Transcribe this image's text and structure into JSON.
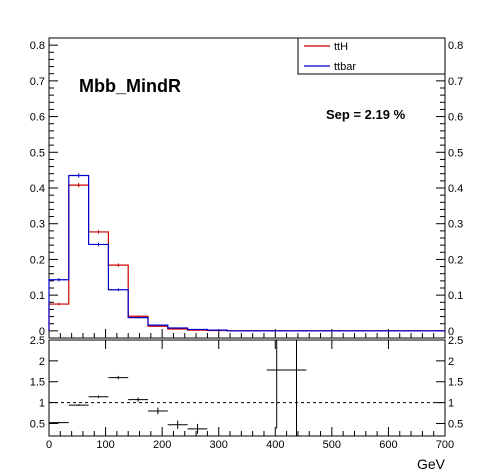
{
  "chart_data": [
    {
      "type": "line",
      "drawstyle": "histogram-steps",
      "title": "Mbb_MindR",
      "annotation": "Sep = 2.19 %",
      "xlim": [
        0,
        700
      ],
      "ylim": [
        -0.02,
        0.82
      ],
      "yticks": [
        0,
        0.1,
        0.2,
        0.3,
        0.4,
        0.5,
        0.6,
        0.7,
        0.8
      ],
      "ytick_labels": [
        "0",
        "0.1",
        "0.2",
        "0.3",
        "0.4",
        "0.5",
        "0.6",
        "0.7",
        "0.8"
      ],
      "ytick_labels_right": [
        "0",
        "0.1",
        "0.2",
        "0.3",
        "0.4",
        "0.5",
        "0.6",
        "0.7",
        "0.8"
      ],
      "legend_position": "top-right",
      "bin_edges": [
        0,
        35,
        70,
        105,
        140,
        175,
        210,
        245,
        280,
        315,
        350,
        385,
        420,
        455,
        490,
        525,
        560,
        595,
        630,
        665,
        700
      ],
      "series": [
        {
          "name": "ttH",
          "color": "#cc0000",
          "values": [
            0.075,
            0.408,
            0.277,
            0.184,
            0.041,
            0.013,
            0.005,
            0.002,
            0.001,
            0,
            0,
            0,
            0,
            0,
            0,
            0,
            0,
            0,
            0,
            0
          ],
          "errors": [
            0.004,
            0.006,
            0.005,
            0.005,
            0.002,
            0.001,
            0.001,
            0.0005,
            0.0005,
            0,
            0,
            0,
            0,
            0,
            0,
            0,
            0,
            0,
            0,
            0
          ]
        },
        {
          "name": "ttbar",
          "color": "#0000cc",
          "values": [
            0.143,
            0.435,
            0.242,
            0.115,
            0.037,
            0.016,
            0.008,
            0.004,
            0.002,
            0,
            0,
            0,
            0,
            0,
            0,
            0,
            0,
            0,
            0,
            0
          ],
          "errors": [
            0.005,
            0.006,
            0.005,
            0.004,
            0.002,
            0.001,
            0.001,
            0.0005,
            0.0005,
            0,
            0,
            0,
            0,
            0,
            0,
            0,
            0,
            0,
            0,
            0
          ]
        }
      ]
    },
    {
      "type": "scatter",
      "description_role": "ratio",
      "xlim": [
        0,
        700
      ],
      "ylim": [
        0.2,
        2.5
      ],
      "xticks": [
        0,
        100,
        200,
        300,
        400,
        500,
        600,
        700
      ],
      "xtick_labels": [
        "0",
        "100",
        "200",
        "300",
        "400",
        "500",
        "600",
        "700"
      ],
      "xlabel": "GeV",
      "yticks": [
        0.5,
        1,
        1.5,
        2,
        2.5
      ],
      "ytick_labels": [
        "0.5",
        "1",
        "1.5",
        "2",
        "2.5"
      ],
      "ytick_labels_right": [
        "0.5",
        "1",
        "1.5",
        "2",
        "2.5"
      ],
      "reference_line": 1,
      "points": [
        {
          "x": 17.5,
          "y": 0.52,
          "xerr": 17.5,
          "yerr": 0.02
        },
        {
          "x": 52.5,
          "y": 0.94,
          "xerr": 17.5,
          "yerr": 0.02
        },
        {
          "x": 87.5,
          "y": 1.14,
          "xerr": 17.5,
          "yerr": 0.03
        },
        {
          "x": 122.5,
          "y": 1.6,
          "xerr": 17.5,
          "yerr": 0.04
        },
        {
          "x": 157.5,
          "y": 1.07,
          "xerr": 17.5,
          "yerr": 0.05
        },
        {
          "x": 192.5,
          "y": 0.8,
          "xerr": 17.5,
          "yerr": 0.08
        },
        {
          "x": 227.5,
          "y": 0.47,
          "xerr": 17.5,
          "yerr": 0.1
        },
        {
          "x": 262.5,
          "y": 0.37,
          "xerr": 17.5,
          "yerr": 0.12
        },
        {
          "x": 402.5,
          "y": 1.78,
          "xerr": 17.5,
          "yerr": 1.4
        },
        {
          "x": 437.5,
          "y": 1.78,
          "xerr": 17.5,
          "yerr": 1.6
        }
      ]
    }
  ]
}
